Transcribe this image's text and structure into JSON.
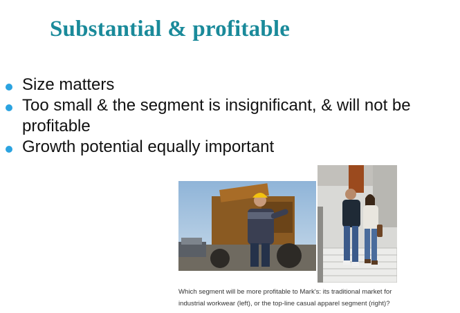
{
  "slide": {
    "title": "Substantial & profitable",
    "bullets": [
      "Size matters",
      "Too small & the segment is insignificant, & will not be profitable",
      "Growth potential equally important"
    ]
  },
  "figure": {
    "caption_line1": "Which segment will be more profitable to Mark's: its traditional market for",
    "caption_line2": "industrial workwear (left), or the top-line casual apparel segment (right)?",
    "left_photo": "worker-with-hard-hat-near-construction-machinery",
    "right_photo": "couple-walking-down-stairs-in-casual-apparel"
  },
  "colors": {
    "title": "#1a8a9a",
    "bullet": "#2ba3e0",
    "text": "#111111"
  }
}
